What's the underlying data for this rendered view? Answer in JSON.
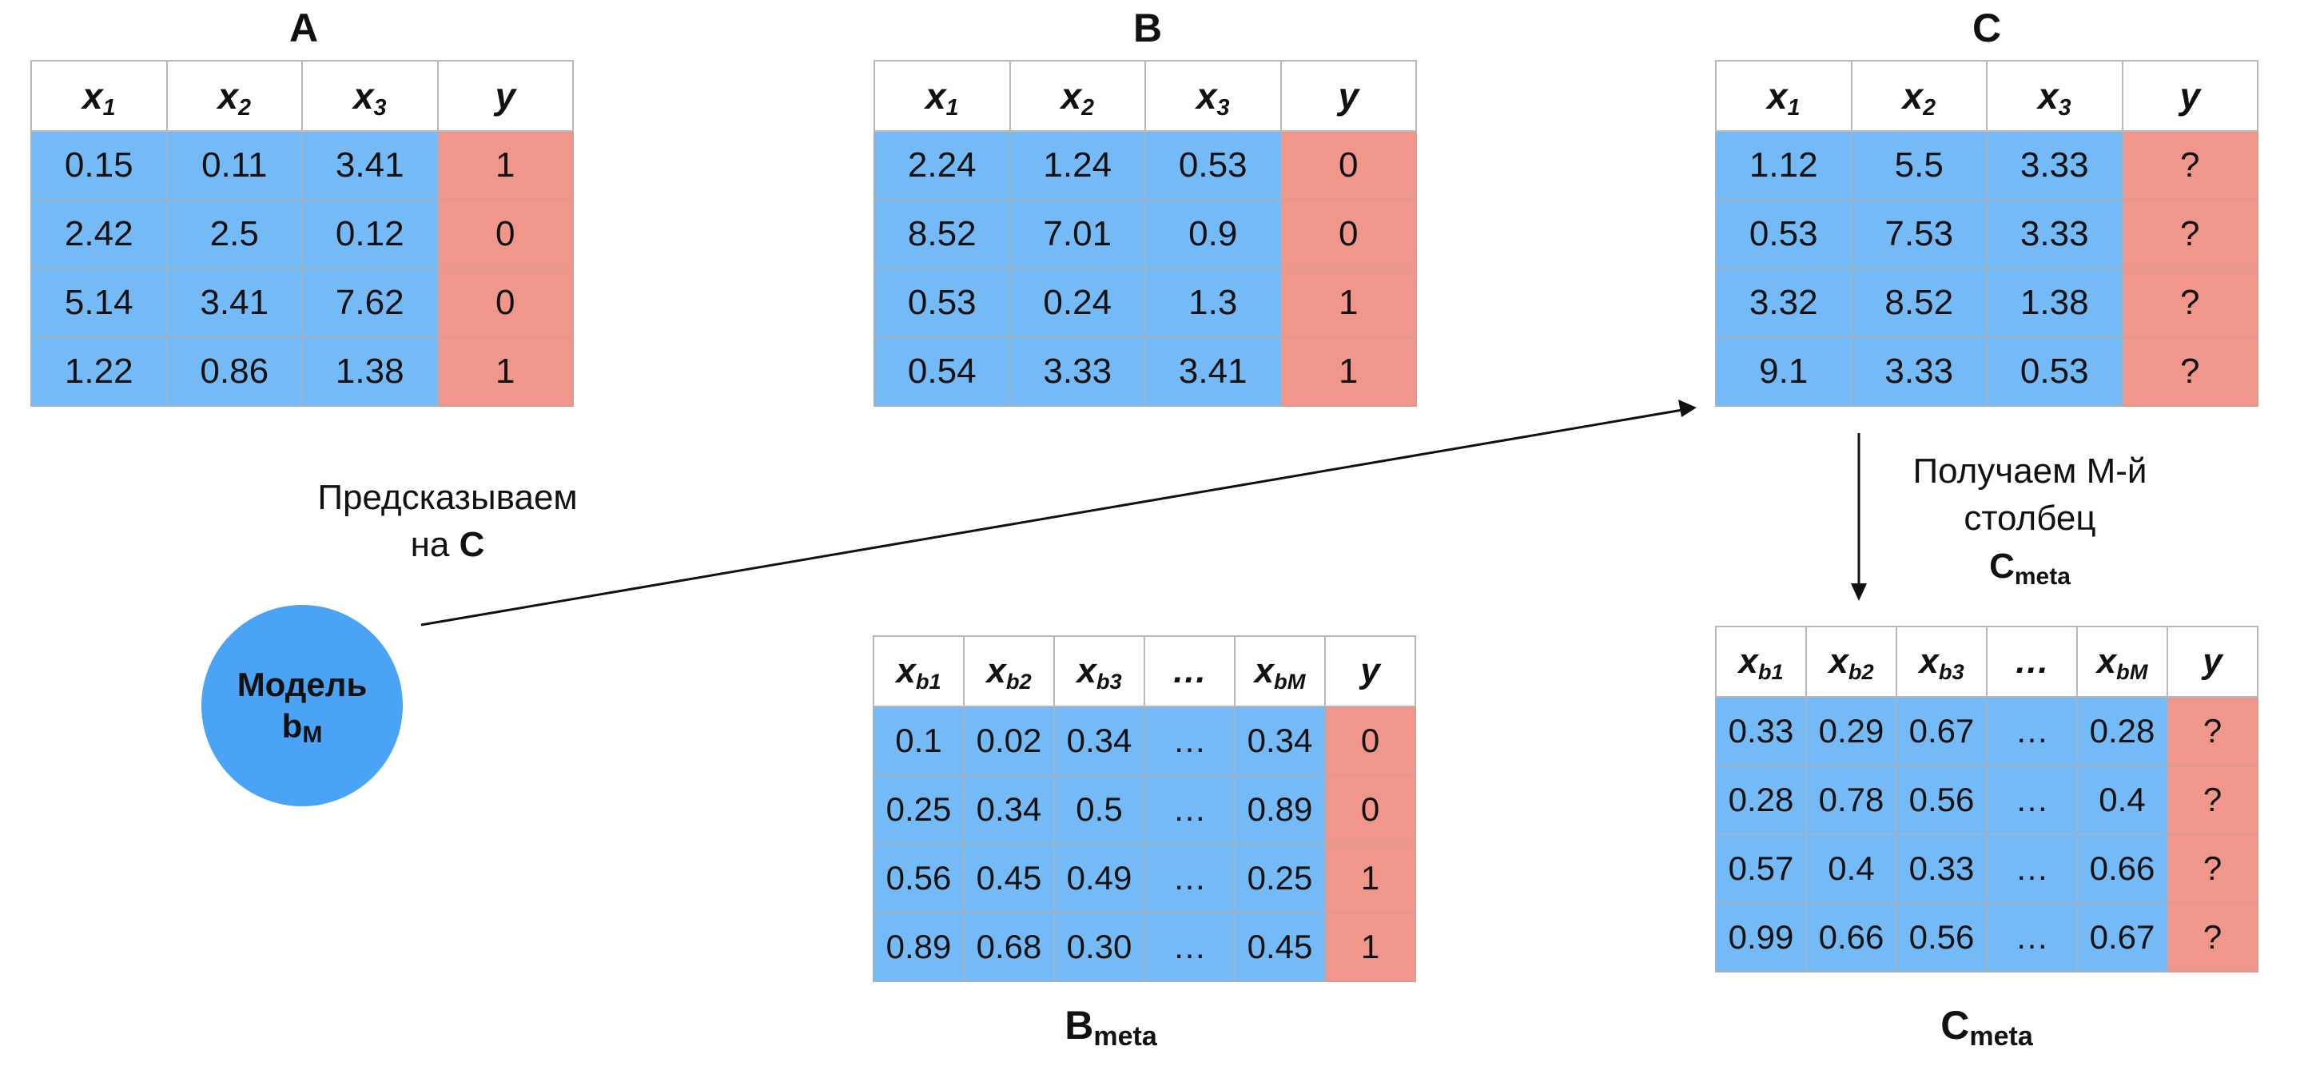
{
  "table_a": {
    "label": "A",
    "headers": [
      {
        "base": "x",
        "sub": "1"
      },
      {
        "base": "x",
        "sub": "2"
      },
      {
        "base": "x",
        "sub": "3"
      },
      {
        "base": "y",
        "sub": ""
      }
    ],
    "rows": [
      [
        "0.15",
        "0.11",
        "3.41",
        "1"
      ],
      [
        "2.42",
        "2.5",
        "0.12",
        "0"
      ],
      [
        "5.14",
        "3.41",
        "7.62",
        "0"
      ],
      [
        "1.22",
        "0.86",
        "1.38",
        "1"
      ]
    ]
  },
  "table_b": {
    "label": "B",
    "headers": [
      {
        "base": "x",
        "sub": "1"
      },
      {
        "base": "x",
        "sub": "2"
      },
      {
        "base": "x",
        "sub": "3"
      },
      {
        "base": "y",
        "sub": ""
      }
    ],
    "rows": [
      [
        "2.24",
        "1.24",
        "0.53",
        "0"
      ],
      [
        "8.52",
        "7.01",
        "0.9",
        "0"
      ],
      [
        "0.53",
        "0.24",
        "1.3",
        "1"
      ],
      [
        "0.54",
        "3.33",
        "3.41",
        "1"
      ]
    ]
  },
  "table_c": {
    "label": "C",
    "headers": [
      {
        "base": "x",
        "sub": "1"
      },
      {
        "base": "x",
        "sub": "2"
      },
      {
        "base": "x",
        "sub": "3"
      },
      {
        "base": "y",
        "sub": ""
      }
    ],
    "rows": [
      [
        "1.12",
        "5.5",
        "3.33",
        "?"
      ],
      [
        "0.53",
        "7.53",
        "3.33",
        "?"
      ],
      [
        "3.32",
        "8.52",
        "1.38",
        "?"
      ],
      [
        "9.1",
        "3.33",
        "0.53",
        "?"
      ]
    ]
  },
  "table_b_meta": {
    "label_base": "B",
    "label_sub": "meta",
    "headers": [
      {
        "base": "x",
        "sub": "b1"
      },
      {
        "base": "x",
        "sub": "b2"
      },
      {
        "base": "x",
        "sub": "b3"
      },
      {
        "base": "…",
        "sub": ""
      },
      {
        "base": "x",
        "sub": "bM"
      },
      {
        "base": "y",
        "sub": ""
      }
    ],
    "rows": [
      [
        "0.1",
        "0.02",
        "0.34",
        "…",
        "0.34",
        "0"
      ],
      [
        "0.25",
        "0.34",
        "0.5",
        "…",
        "0.89",
        "0"
      ],
      [
        "0.56",
        "0.45",
        "0.49",
        "…",
        "0.25",
        "1"
      ],
      [
        "0.89",
        "0.68",
        "0.30",
        "…",
        "0.45",
        "1"
      ]
    ]
  },
  "table_c_meta": {
    "label_base": "C",
    "label_sub": "meta",
    "headers": [
      {
        "base": "x",
        "sub": "b1"
      },
      {
        "base": "x",
        "sub": "b2"
      },
      {
        "base": "x",
        "sub": "b3"
      },
      {
        "base": "…",
        "sub": ""
      },
      {
        "base": "x",
        "sub": "bM"
      },
      {
        "base": "y",
        "sub": ""
      }
    ],
    "rows": [
      [
        "0.33",
        "0.29",
        "0.67",
        "…",
        "0.28",
        "?"
      ],
      [
        "0.28",
        "0.78",
        "0.56",
        "…",
        "0.4",
        "?"
      ],
      [
        "0.57",
        "0.4",
        "0.33",
        "…",
        "0.66",
        "?"
      ],
      [
        "0.99",
        "0.66",
        "0.56",
        "…",
        "0.67",
        "?"
      ]
    ]
  },
  "model": {
    "line1": "Модель",
    "line2_base": "b",
    "line2_sub": "M"
  },
  "predict_caption": {
    "line1": "Предсказываем",
    "line2_prefix": "на ",
    "line2_bold": "C"
  },
  "column_caption": {
    "line1": "Получаем M-й",
    "line2": "столбец",
    "line3_base": "C",
    "line3_sub": "meta"
  },
  "colors": {
    "feature_cell": "#74baf6",
    "target_cell": "#f0968b",
    "model_circle": "#4aa3f4"
  }
}
